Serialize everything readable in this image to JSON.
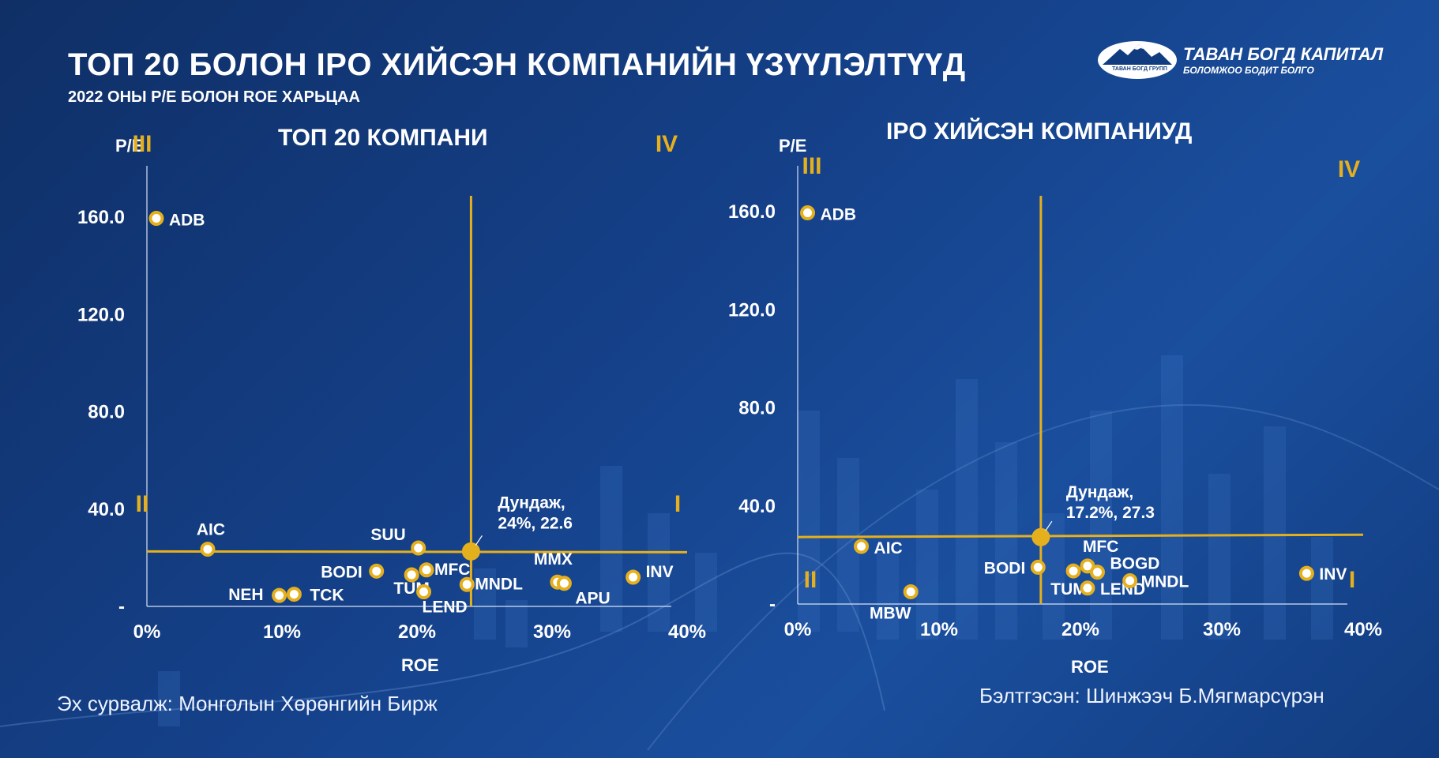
{
  "header": {
    "title": "ТОП 20 БОЛОН IPO ХИЙСЭН КОМПАНИЙН ҮЗҮҮЛЭЛТҮҮД",
    "subtitle": "2022 ОНЫ P/E БОЛОН ROE ХАРЬЦАА"
  },
  "logo": {
    "name": "ТАВАН БОГД КАПИТАЛ",
    "tagline": "БОЛОМЖОО БОДИТ БОЛГО",
    "mark_text": "ТАВАН БОГД ГРУПП"
  },
  "colors": {
    "accent": "#e5b01d",
    "background": "#15418a",
    "text": "#ffffff"
  },
  "footer": {
    "source": "Эх сурвалж: Монголын Хөрөнгийн Бирж",
    "prepared_by": "Бэлтгэсэн: Шинжээч Б.Мягмарсүрэн"
  },
  "chart_data": [
    {
      "type": "scatter",
      "title": "ТОП 20 КОМПАНИ",
      "xlabel": "ROE",
      "ylabel": "P/E",
      "xlim": [
        0,
        40
      ],
      "ylim": [
        0,
        160
      ],
      "xticks": [
        "0%",
        "10%",
        "20%",
        "30%",
        "40%"
      ],
      "yticks": [
        "-",
        "40.0",
        "80.0",
        "120.0",
        "160.0"
      ],
      "quadrants": [
        "III",
        "IV",
        "II",
        "I"
      ],
      "average": {
        "x": 24,
        "y": 22.6,
        "label_line1": "Дундаж,",
        "label_line2": "24%, 22.6"
      },
      "points": [
        {
          "name": "ADB",
          "x": 0.7,
          "y": 159.5
        },
        {
          "name": "AIC",
          "x": 4.5,
          "y": 23.5
        },
        {
          "name": "NEH",
          "x": 9.8,
          "y": 4.5
        },
        {
          "name": "TCK",
          "x": 10.9,
          "y": 5.0
        },
        {
          "name": "BODI",
          "x": 17.0,
          "y": 14.5
        },
        {
          "name": "SUU",
          "x": 20.1,
          "y": 24.0
        },
        {
          "name": "TUM",
          "x": 19.6,
          "y": 13.0
        },
        {
          "name": "MFC",
          "x": 20.7,
          "y": 15.0
        },
        {
          "name": "LEND",
          "x": 20.5,
          "y": 6.0
        },
        {
          "name": "MNDL",
          "x": 23.7,
          "y": 9.0
        },
        {
          "name": "MMX",
          "x": 30.4,
          "y": 10.0
        },
        {
          "name": "APU",
          "x": 30.9,
          "y": 9.5
        },
        {
          "name": "INV",
          "x": 36.0,
          "y": 12.0
        }
      ]
    },
    {
      "type": "scatter",
      "title": "IPO ХИЙСЭН КОМПАНИУД",
      "xlabel": "ROE",
      "ylabel": "P/E",
      "xlim": [
        0,
        40
      ],
      "ylim": [
        0,
        160
      ],
      "xticks": [
        "0%",
        "10%",
        "20%",
        "30%",
        "40%"
      ],
      "yticks": [
        "-",
        "40.0",
        "80.0",
        "120.0",
        "160.0"
      ],
      "quadrants": [
        "III",
        "IV",
        "II",
        "I"
      ],
      "average": {
        "x": 17.2,
        "y": 27.3,
        "label_line1": "Дундаж,",
        "label_line2": "17.2%,  27.3"
      },
      "points": [
        {
          "name": "ADB",
          "x": 0.7,
          "y": 159.5
        },
        {
          "name": "AIC",
          "x": 4.5,
          "y": 23.5
        },
        {
          "name": "MBW",
          "x": 8.0,
          "y": 5.0
        },
        {
          "name": "BODI",
          "x": 17.0,
          "y": 15.0
        },
        {
          "name": "TUM",
          "x": 19.5,
          "y": 13.5
        },
        {
          "name": "MFC",
          "x": 20.5,
          "y": 15.5
        },
        {
          "name": "BOGD",
          "x": 21.2,
          "y": 13.0
        },
        {
          "name": "LEND",
          "x": 20.5,
          "y": 6.5
        },
        {
          "name": "MNDL",
          "x": 23.5,
          "y": 9.5
        },
        {
          "name": "INV",
          "x": 36.0,
          "y": 12.5
        }
      ]
    }
  ]
}
